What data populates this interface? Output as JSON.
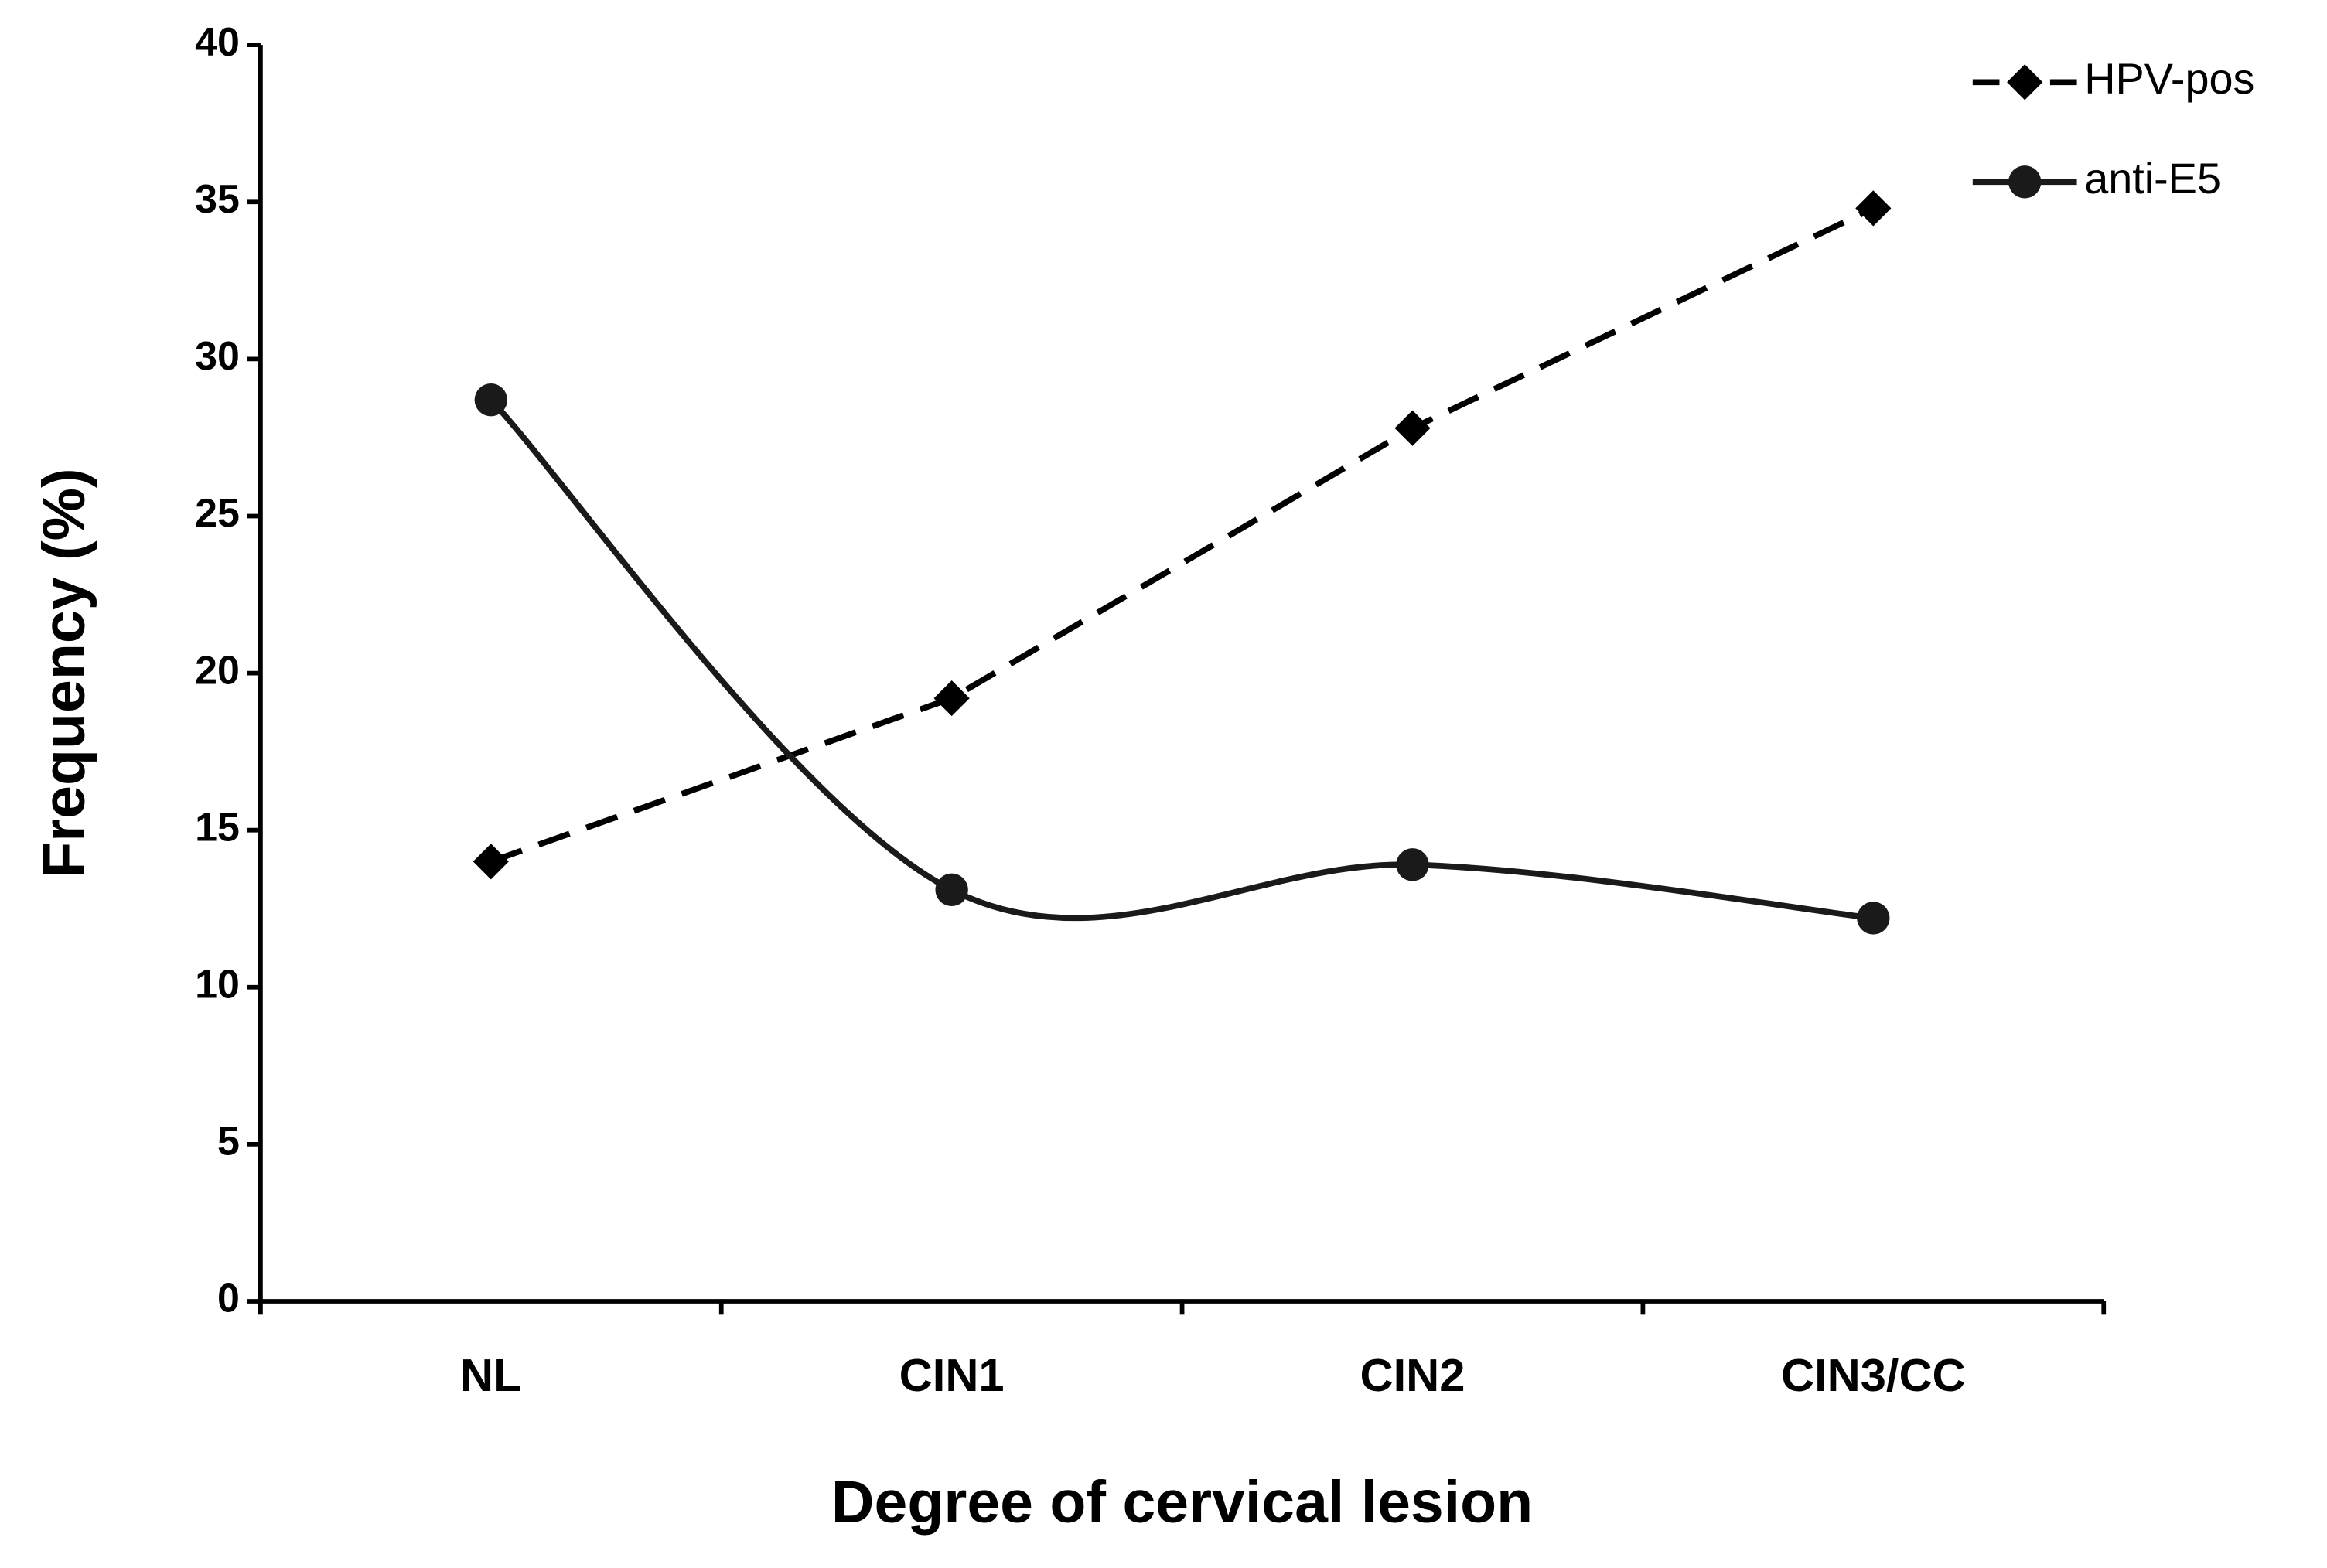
{
  "chart_data": {
    "type": "line",
    "x_label": "Degree of cervical lesion",
    "y_label": "Frequency (%)",
    "categories": [
      "NL",
      "CIN1",
      "CIN2",
      "CIN3/CC"
    ],
    "series": [
      {
        "name": "HPV-pos",
        "color": "#000000",
        "dash": true,
        "marker": "diamond",
        "smooth": false,
        "values": [
          14.0,
          19.2,
          27.8,
          34.8
        ]
      },
      {
        "name": "anti-E5",
        "color": "#1a1a1a",
        "dash": false,
        "marker": "circle",
        "smooth": true,
        "values": [
          28.7,
          13.1,
          13.9,
          12.2
        ]
      }
    ],
    "ylim": [
      0,
      40
    ],
    "yticks": [
      0,
      5,
      10,
      15,
      20,
      25,
      30,
      35,
      40
    ],
    "grid": false,
    "legend": "upper right"
  }
}
